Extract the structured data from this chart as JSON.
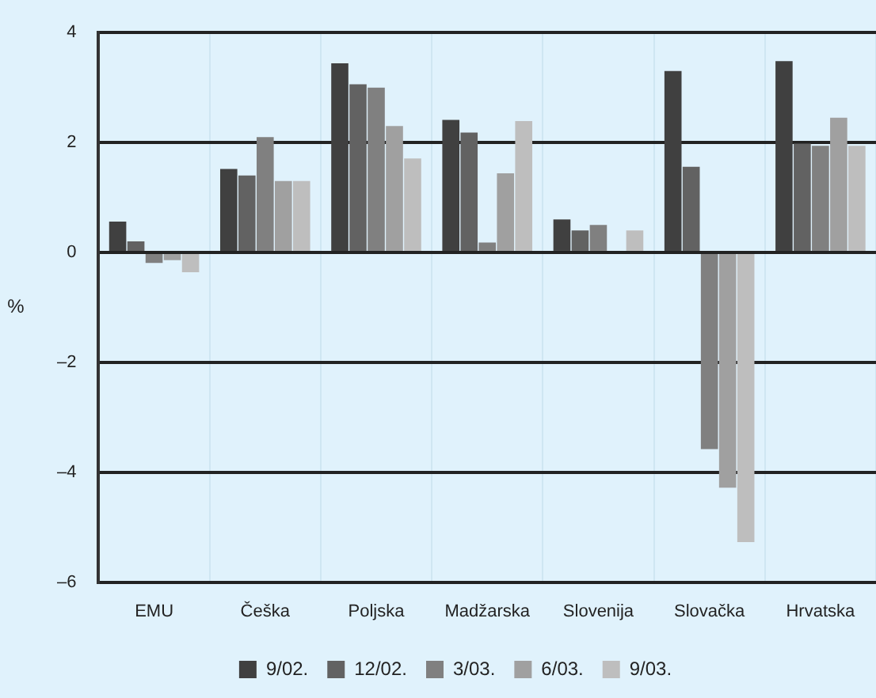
{
  "chart_data": {
    "type": "bar",
    "ylabel": "%",
    "categories": [
      "EMU",
      "Češka",
      "Poljska",
      "Madžarska",
      "Slovenija",
      "Slovačka",
      "Hrvatska"
    ],
    "series": [
      {
        "name": "9/02.",
        "color": "#404040",
        "values": [
          0.56,
          1.52,
          3.44,
          2.41,
          0.6,
          3.3,
          3.48
        ]
      },
      {
        "name": "12/02.",
        "color": "#626262",
        "values": [
          0.2,
          1.4,
          3.06,
          2.18,
          0.4,
          1.56,
          1.98
        ]
      },
      {
        "name": "3/03.",
        "color": "#808080",
        "values": [
          -0.19,
          2.1,
          3.0,
          0.18,
          0.5,
          -3.58,
          1.94
        ]
      },
      {
        "name": "6/03.",
        "color": "#a0a0a0",
        "values": [
          -0.14,
          1.3,
          2.3,
          1.44,
          null,
          -4.28,
          2.45
        ]
      },
      {
        "name": "9/03.",
        "color": "#bebebe",
        "values": [
          -0.36,
          1.3,
          1.71,
          2.39,
          0.4,
          -5.27,
          1.94
        ]
      }
    ],
    "ylim": [
      -6,
      4
    ],
    "yticks": [
      {
        "value": -6,
        "label": "–6"
      },
      {
        "value": -4,
        "label": "–4"
      },
      {
        "value": -2,
        "label": "–2"
      },
      0,
      2,
      4
    ],
    "grid": true,
    "legend": "bottom"
  }
}
